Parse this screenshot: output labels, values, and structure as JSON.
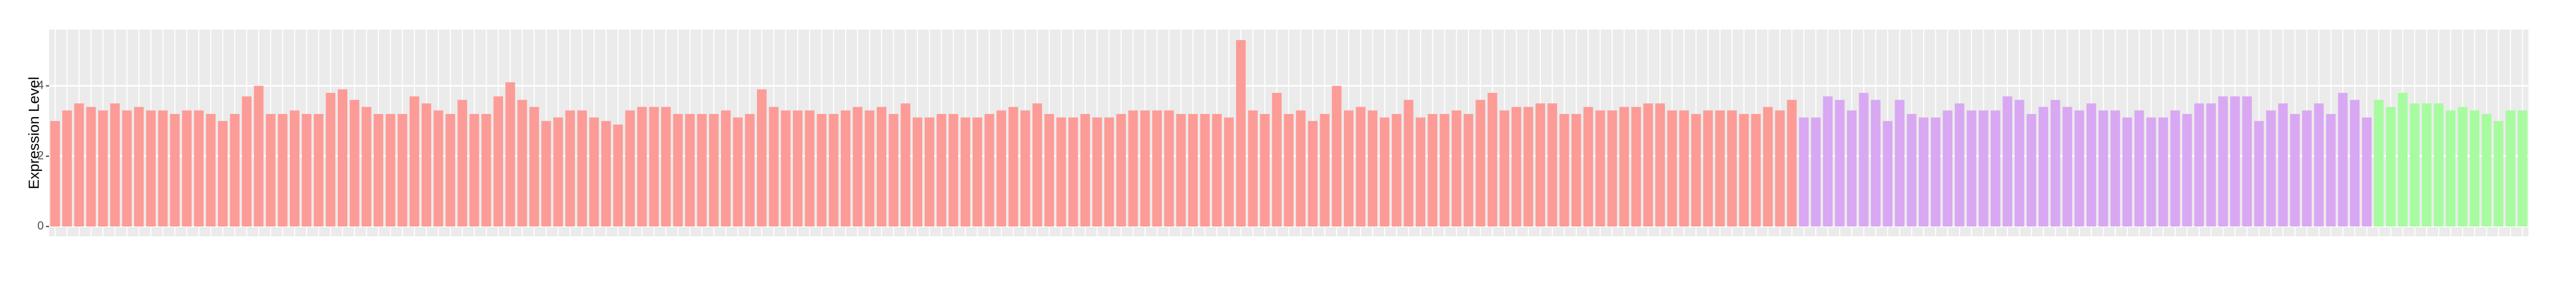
{
  "chart_data": {
    "type": "bar",
    "y_label": "Expression Level",
    "ylim": [
      -0.28,
      5.6
    ],
    "yticks": [
      0,
      2,
      4
    ],
    "grid": true,
    "series": [
      {
        "color": "#fd9b97",
        "values": [
          3.0,
          3.3,
          3.5,
          3.4,
          3.3,
          3.5,
          3.3,
          3.4,
          3.3,
          3.3,
          3.2,
          3.3,
          3.3,
          3.2,
          3.0,
          3.2,
          3.7,
          4.0,
          3.2,
          3.2,
          3.3,
          3.2,
          3.2,
          3.8,
          3.9,
          3.6,
          3.4,
          3.2,
          3.2,
          3.2,
          3.7,
          3.5,
          3.3,
          3.2,
          3.6,
          3.2,
          3.2,
          3.7,
          4.1,
          3.6,
          3.4,
          3.0,
          3.1,
          3.3,
          3.3,
          3.1,
          3.0,
          2.9,
          3.3,
          3.4,
          3.4,
          3.4,
          3.2,
          3.2,
          3.2,
          3.2,
          3.3,
          3.1,
          3.2,
          3.9,
          3.4,
          3.3,
          3.3,
          3.3,
          3.2,
          3.2,
          3.3,
          3.4,
          3.3,
          3.4,
          3.2,
          3.5,
          3.1,
          3.1,
          3.2,
          3.2,
          3.1,
          3.1,
          3.2,
          3.3,
          3.4,
          3.3,
          3.5,
          3.2,
          3.1,
          3.1,
          3.2,
          3.1,
          3.1,
          3.2,
          3.3,
          3.3,
          3.3,
          3.3,
          3.2,
          3.2,
          3.2,
          3.2,
          3.1,
          5.3,
          3.3,
          3.2,
          3.8,
          3.2,
          3.3,
          3.0,
          3.2,
          4.0,
          3.3,
          3.4,
          3.3,
          3.1,
          3.2,
          3.6,
          3.1,
          3.2,
          3.2,
          3.3,
          3.2,
          3.6,
          3.8,
          3.3,
          3.4,
          3.4,
          3.5,
          3.5,
          3.2,
          3.2,
          3.4,
          3.3,
          3.3,
          3.4,
          3.4,
          3.5,
          3.5,
          3.3,
          3.3,
          3.2,
          3.3,
          3.3,
          3.3,
          3.2,
          3.2,
          3.4,
          3.3,
          3.6
        ]
      },
      {
        "color": "#d9a8f2",
        "values": [
          3.1,
          3.1,
          3.7,
          3.6,
          3.3,
          3.8,
          3.6,
          3.0,
          3.6,
          3.2,
          3.1,
          3.1,
          3.3,
          3.5,
          3.3,
          3.3,
          3.3,
          3.7,
          3.6,
          3.2,
          3.4,
          3.6,
          3.4,
          3.3,
          3.5,
          3.3,
          3.3,
          3.1,
          3.3,
          3.1,
          3.1,
          3.3,
          3.2,
          3.5,
          3.5,
          3.7,
          3.7,
          3.7,
          3.0,
          3.3,
          3.5,
          3.2,
          3.3,
          3.5,
          3.2,
          3.8,
          3.6,
          3.1
        ]
      },
      {
        "color": "#a6fc9e",
        "values": [
          3.6,
          3.4,
          3.8,
          3.5,
          3.5,
          3.5,
          3.3,
          3.4,
          3.3,
          3.2,
          3.0,
          3.3,
          3.3
        ]
      }
    ]
  }
}
